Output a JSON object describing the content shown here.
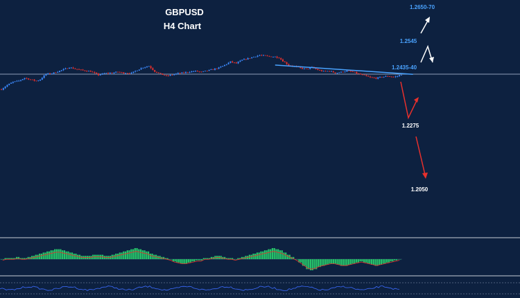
{
  "chart_data": {
    "type": "candlestick",
    "title": "GBPUSD",
    "subtitle": "H4 Chart",
    "colors": {
      "background": "#0d2140",
      "bull": "#3d8bff",
      "bear": "#e8302c",
      "trendline": "#4aa3ff",
      "hline": "#8fa0b8",
      "macd_hist": "#27c46a",
      "macd_signal": "#e8302c",
      "rsi": "#3d6cff",
      "separator": "#c8cdd6",
      "projection_up": "#ffffff",
      "projection_down": "#e8302c"
    },
    "price_path": [
      [
        0,
        1.2288
      ],
      [
        3,
        1.233
      ],
      [
        6,
        1.236
      ],
      [
        9,
        1.2372
      ],
      [
        12,
        1.24
      ],
      [
        15,
        1.2385
      ],
      [
        18,
        1.237
      ],
      [
        20,
        1.2385
      ],
      [
        23,
        1.244
      ],
      [
        26,
        1.2445
      ],
      [
        30,
        1.247
      ],
      [
        35,
        1.2505
      ],
      [
        38,
        1.249
      ],
      [
        42,
        1.2475
      ],
      [
        46,
        1.2465
      ],
      [
        50,
        1.243
      ],
      [
        53,
        1.2445
      ],
      [
        57,
        1.245
      ],
      [
        60,
        1.246
      ],
      [
        63,
        1.245
      ],
      [
        67,
        1.2448
      ],
      [
        70,
        1.2478
      ],
      [
        73,
        1.2505
      ],
      [
        76,
        1.2518
      ],
      [
        79,
        1.2465
      ],
      [
        82,
        1.244
      ],
      [
        85,
        1.242
      ],
      [
        88,
        1.2432
      ],
      [
        91,
        1.2445
      ],
      [
        94,
        1.2452
      ],
      [
        97,
        1.2462
      ],
      [
        100,
        1.2468
      ],
      [
        103,
        1.2458
      ],
      [
        106,
        1.2472
      ],
      [
        109,
        1.2485
      ],
      [
        112,
        1.25
      ],
      [
        115,
        1.2528
      ],
      [
        118,
        1.256
      ],
      [
        121,
        1.2545
      ],
      [
        124,
        1.2578
      ],
      [
        127,
        1.2592
      ],
      [
        130,
        1.261
      ],
      [
        133,
        1.2625
      ],
      [
        136,
        1.2618
      ],
      [
        138,
        1.2612
      ],
      [
        141,
        1.261
      ],
      [
        143,
        1.26
      ],
      [
        145,
        1.2568
      ],
      [
        148,
        1.2525
      ],
      [
        151,
        1.2515
      ],
      [
        154,
        1.2498
      ],
      [
        157,
        1.2488
      ],
      [
        160,
        1.2505
      ],
      [
        163,
        1.248
      ],
      [
        166,
        1.2465
      ],
      [
        169,
        1.247
      ],
      [
        172,
        1.245
      ],
      [
        175,
        1.2458
      ],
      [
        178,
        1.247
      ],
      [
        181,
        1.246
      ],
      [
        184,
        1.244
      ],
      [
        187,
        1.2425
      ],
      [
        190,
        1.2405
      ],
      [
        193,
        1.2398
      ],
      [
        196,
        1.241
      ],
      [
        199,
        1.2418
      ],
      [
        202,
        1.241
      ],
      [
        204,
        1.2418
      ],
      [
        206,
        1.2435
      ]
    ],
    "trendline": {
      "start": [
        141,
        1.2528
      ],
      "end": [
        212,
        1.2436
      ]
    },
    "horizontal_level": 1.2438,
    "levels_up": [
      "1.2650-70",
      "1.2545",
      "1.2435-40"
    ],
    "levels_down": [
      "1.2275",
      "1.2050"
    ],
    "macd_histogram": [
      0.0,
      0.1,
      0.1,
      0.1,
      0.2,
      0.1,
      0.1,
      0.2,
      0.3,
      0.4,
      0.5,
      0.6,
      0.7,
      0.8,
      0.9,
      0.9,
      0.8,
      0.7,
      0.6,
      0.5,
      0.4,
      0.3,
      0.3,
      0.3,
      0.4,
      0.4,
      0.4,
      0.3,
      0.3,
      0.4,
      0.5,
      0.6,
      0.7,
      0.8,
      0.9,
      1.0,
      0.9,
      0.8,
      0.7,
      0.5,
      0.4,
      0.3,
      0.2,
      0.1,
      0.0,
      -0.2,
      -0.3,
      -0.4,
      -0.4,
      -0.3,
      -0.2,
      -0.1,
      -0.1,
      0.1,
      0.1,
      0.2,
      0.3,
      0.3,
      0.2,
      0.1,
      0.1,
      0.0,
      0.1,
      0.2,
      0.3,
      0.4,
      0.5,
      0.6,
      0.7,
      0.8,
      0.9,
      1.0,
      0.9,
      0.8,
      0.6,
      0.4,
      0.2,
      0.0,
      -0.3,
      -0.6,
      -0.9,
      -1.0,
      -0.9,
      -0.7,
      -0.6,
      -0.5,
      -0.4,
      -0.4,
      -0.5,
      -0.6,
      -0.6,
      -0.5,
      -0.4,
      -0.3,
      -0.2,
      -0.3,
      -0.4,
      -0.5,
      -0.6,
      -0.5,
      -0.4,
      -0.3,
      -0.2,
      -0.1,
      0.0
    ],
    "grid": false,
    "legend": "none"
  }
}
